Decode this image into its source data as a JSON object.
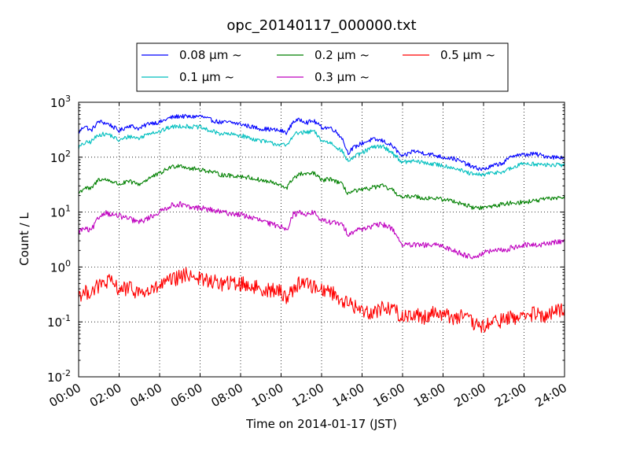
{
  "chart_data": {
    "type": "line",
    "title": "opc_20140117_000000.txt",
    "xlabel": "Time on 2014-01-17 (JST)",
    "ylabel": "Count / L",
    "y_scale": "log",
    "ylim": [
      0.01,
      1000
    ],
    "xlim_hours": [
      0,
      24
    ],
    "x_ticks": [
      {
        "hour": 0,
        "label": "00:00"
      },
      {
        "hour": 2,
        "label": "02:00"
      },
      {
        "hour": 4,
        "label": "04:00"
      },
      {
        "hour": 6,
        "label": "06:00"
      },
      {
        "hour": 8,
        "label": "08:00"
      },
      {
        "hour": 10,
        "label": "10:00"
      },
      {
        "hour": 12,
        "label": "12:00"
      },
      {
        "hour": 14,
        "label": "14:00"
      },
      {
        "hour": 16,
        "label": "16:00"
      },
      {
        "hour": 18,
        "label": "18:00"
      },
      {
        "hour": 20,
        "label": "20:00"
      },
      {
        "hour": 22,
        "label": "22:00"
      },
      {
        "hour": 24,
        "label": "24:00"
      }
    ],
    "y_ticks": [
      {
        "value": 0.01,
        "mantissa": "10",
        "exp": "-2"
      },
      {
        "value": 0.1,
        "mantissa": "10",
        "exp": "-1"
      },
      {
        "value": 1,
        "mantissa": "10",
        "exp": "0"
      },
      {
        "value": 10,
        "mantissa": "10",
        "exp": "1"
      },
      {
        "value": 100,
        "mantissa": "10",
        "exp": "2"
      },
      {
        "value": 1000,
        "mantissa": "10",
        "exp": "3"
      }
    ],
    "grid": true,
    "legend_position": "top",
    "series": [
      {
        "name": "0.08 μm ~",
        "color": "#0000ff",
        "noise": 0.04,
        "x": [
          0,
          0.3,
          0.6,
          1,
          1.5,
          2,
          2.5,
          3,
          3.5,
          4,
          4.5,
          5,
          5.5,
          6,
          6.5,
          7,
          7.5,
          8,
          8.5,
          9,
          9.5,
          10,
          10.3,
          10.6,
          11,
          11.3,
          11.6,
          12,
          12.5,
          13,
          13.3,
          13.6,
          14,
          14.5,
          15,
          15.5,
          16,
          16.5,
          17,
          17.5,
          18,
          18.5,
          19,
          19.5,
          20,
          20.5,
          21,
          21.5,
          22,
          22.5,
          23,
          23.5,
          24
        ],
        "y": [
          280,
          380,
          300,
          450,
          400,
          300,
          380,
          330,
          420,
          430,
          520,
          560,
          540,
          560,
          480,
          430,
          430,
          400,
          360,
          330,
          320,
          300,
          280,
          450,
          480,
          430,
          460,
          350,
          340,
          230,
          120,
          150,
          180,
          210,
          200,
          160,
          100,
          130,
          120,
          110,
          100,
          95,
          80,
          65,
          60,
          70,
          80,
          110,
          110,
          115,
          105,
          100,
          100
        ]
      },
      {
        "name": "0.1 μm ~",
        "color": "#00bfbf",
        "noise": 0.04,
        "x": [
          0,
          0.3,
          0.6,
          1,
          1.5,
          2,
          2.5,
          3,
          3.5,
          4,
          4.5,
          5,
          5.5,
          6,
          6.5,
          7,
          7.5,
          8,
          8.5,
          9,
          9.5,
          10,
          10.3,
          10.6,
          11,
          11.3,
          11.6,
          12,
          12.5,
          13,
          13.3,
          13.6,
          14,
          14.5,
          15,
          15.5,
          16,
          16.5,
          17,
          17.5,
          18,
          18.5,
          19,
          19.5,
          20,
          20.5,
          21,
          21.5,
          22,
          22.5,
          23,
          23.5,
          24
        ],
        "y": [
          150,
          180,
          190,
          260,
          260,
          200,
          240,
          220,
          280,
          290,
          350,
          370,
          360,
          350,
          300,
          270,
          260,
          250,
          220,
          200,
          180,
          170,
          160,
          260,
          280,
          280,
          300,
          200,
          180,
          130,
          85,
          100,
          120,
          150,
          160,
          120,
          80,
          85,
          80,
          75,
          70,
          65,
          55,
          48,
          48,
          52,
          55,
          65,
          78,
          75,
          72,
          72,
          72
        ]
      },
      {
        "name": "0.2 μm ~",
        "color": "#008000",
        "noise": 0.04,
        "x": [
          0,
          0.3,
          0.6,
          1,
          1.5,
          2,
          2.5,
          3,
          3.5,
          4,
          4.5,
          5,
          5.5,
          6,
          6.5,
          7,
          7.5,
          8,
          8.5,
          9,
          9.5,
          10,
          10.3,
          10.6,
          11,
          11.3,
          11.6,
          12,
          12.5,
          13,
          13.3,
          13.6,
          14,
          14.5,
          15,
          15.5,
          16,
          16.5,
          17,
          17.5,
          18,
          18.5,
          19,
          19.5,
          20,
          20.5,
          21,
          21.5,
          22,
          22.5,
          23,
          23.5,
          24
        ],
        "y": [
          22,
          28,
          26,
          40,
          38,
          32,
          36,
          32,
          42,
          50,
          65,
          72,
          62,
          60,
          55,
          48,
          46,
          45,
          42,
          38,
          35,
          30,
          28,
          42,
          50,
          48,
          52,
          38,
          40,
          32,
          22,
          24,
          25,
          28,
          30,
          25,
          18,
          20,
          18,
          18,
          17,
          16,
          14,
          12,
          12,
          13,
          14,
          15,
          15,
          16,
          17,
          18,
          19
        ]
      },
      {
        "name": "0.3 μm ~",
        "color": "#bf00bf",
        "noise": 0.05,
        "x": [
          0,
          0.3,
          0.6,
          1,
          1.3,
          1.6,
          2,
          2.5,
          3,
          3.5,
          4,
          4.5,
          5,
          5.5,
          6,
          6.5,
          7,
          7.5,
          8,
          8.5,
          9,
          9.5,
          10,
          10.3,
          10.6,
          11,
          11.3,
          11.6,
          12,
          12.5,
          13,
          13.3,
          13.6,
          14,
          14.5,
          15,
          15.5,
          16,
          16.5,
          17,
          17.5,
          18,
          18.5,
          19,
          19.5,
          20,
          20.5,
          21,
          21.5,
          22,
          22.5,
          23,
          23.5,
          24
        ],
        "y": [
          4.5,
          5,
          4.5,
          8,
          10,
          9,
          8.5,
          7.5,
          6.5,
          8,
          10,
          13,
          14,
          12,
          12,
          11,
          10,
          9.5,
          9,
          8,
          7,
          6,
          5.5,
          5,
          9,
          10,
          9,
          10,
          7,
          6.5,
          6,
          4,
          4.5,
          5,
          5.5,
          6,
          5,
          2.5,
          2.5,
          2.5,
          2.5,
          2.4,
          2,
          1.7,
          1.5,
          1.8,
          2,
          2,
          2.3,
          2.5,
          2.5,
          2.6,
          2.8,
          3
        ]
      },
      {
        "name": "0.5 μm ~",
        "color": "#ff0000",
        "noise": 0.14,
        "x": [
          0,
          0.5,
          1,
          1.5,
          2,
          2.5,
          3,
          3.5,
          4,
          4.5,
          5,
          5.5,
          6,
          6.5,
          7,
          7.5,
          8,
          8.5,
          9,
          9.5,
          10,
          10.3,
          10.6,
          11,
          11.5,
          12,
          12.5,
          13,
          13.5,
          14,
          14.5,
          15,
          15.5,
          16,
          16.5,
          17,
          17.5,
          18,
          18.5,
          19,
          19.5,
          20,
          20.5,
          21,
          21.5,
          22,
          22.5,
          23,
          23.5,
          24
        ],
        "y": [
          0.32,
          0.35,
          0.45,
          0.55,
          0.4,
          0.4,
          0.35,
          0.35,
          0.45,
          0.55,
          0.65,
          0.75,
          0.6,
          0.55,
          0.5,
          0.5,
          0.5,
          0.45,
          0.4,
          0.38,
          0.35,
          0.28,
          0.4,
          0.55,
          0.45,
          0.4,
          0.35,
          0.25,
          0.2,
          0.16,
          0.15,
          0.18,
          0.18,
          0.12,
          0.14,
          0.12,
          0.15,
          0.14,
          0.12,
          0.13,
          0.09,
          0.08,
          0.1,
          0.11,
          0.12,
          0.13,
          0.14,
          0.12,
          0.15,
          0.17
        ]
      }
    ]
  }
}
